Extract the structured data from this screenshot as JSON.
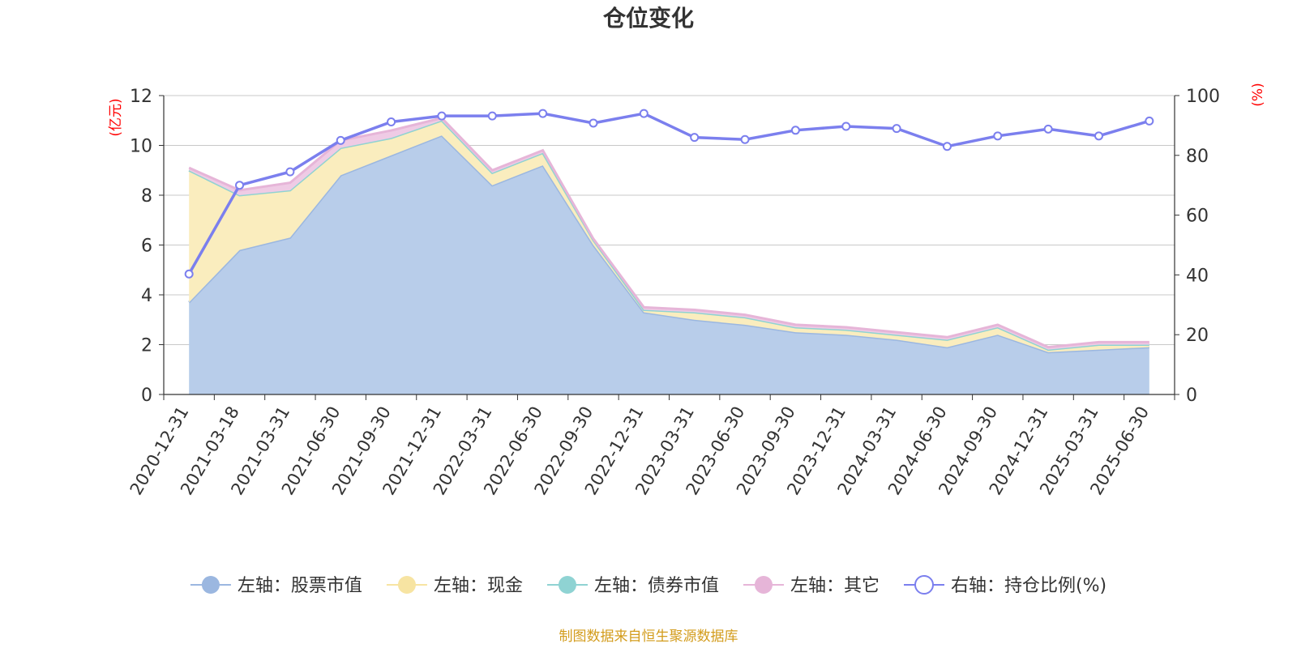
{
  "chart_data": {
    "type": "area",
    "title": "仓位变化",
    "left_unit": "(亿元)",
    "right_unit": "(%)",
    "source": "制图数据来自恒生聚源数据库",
    "x": [
      "2020-12-31",
      "2021-03-18",
      "2021-03-31",
      "2021-06-30",
      "2021-09-30",
      "2021-12-31",
      "2022-03-31",
      "2022-06-30",
      "2022-09-30",
      "2022-12-31",
      "2023-03-31",
      "2023-06-30",
      "2023-09-30",
      "2023-12-31",
      "2024-03-31",
      "2024-06-30",
      "2024-09-30",
      "2024-12-31",
      "2025-03-31",
      "2025-06-30"
    ],
    "y_left": {
      "min": 0,
      "max": 12,
      "ticks": [
        "0",
        "2",
        "4",
        "6",
        "8",
        "10",
        "12"
      ]
    },
    "y_right": {
      "min": 0,
      "max": 100,
      "ticks": [
        "0",
        "20",
        "40",
        "60",
        "80",
        "100"
      ]
    },
    "series": [
      {
        "name": "左轴：股票市值",
        "axis": "left",
        "stack": true,
        "color": "#9bb7e0",
        "fill": "#b8cdea",
        "values": [
          3.7,
          5.8,
          6.3,
          8.8,
          9.6,
          10.4,
          8.4,
          9.2,
          6.0,
          3.3,
          3.0,
          2.8,
          2.5,
          2.4,
          2.2,
          1.9,
          2.4,
          1.7,
          1.8,
          1.9
        ]
      },
      {
        "name": "左轴：现金",
        "axis": "left",
        "stack": true,
        "color": "#f7e4a2",
        "fill": "#faedbe",
        "values": [
          5.3,
          2.2,
          1.9,
          1.1,
          0.7,
          0.6,
          0.5,
          0.5,
          0.2,
          0.1,
          0.3,
          0.3,
          0.2,
          0.2,
          0.2,
          0.3,
          0.3,
          0.1,
          0.2,
          0.1
        ]
      },
      {
        "name": "左轴：债券市值",
        "axis": "left",
        "stack": true,
        "color": "#8fd3d3",
        "fill": "#b5e3e3",
        "values": [
          0,
          0,
          0,
          0,
          0,
          0,
          0,
          0,
          0,
          0,
          0,
          0,
          0,
          0,
          0,
          0,
          0,
          0,
          0,
          0
        ]
      },
      {
        "name": "左轴：其它",
        "axis": "left",
        "stack": true,
        "color": "#e6b5d8",
        "fill": "#efcbe5",
        "values": [
          0.1,
          0.2,
          0.3,
          0.3,
          0.3,
          0.1,
          0.1,
          0.1,
          0.05,
          0.1,
          0.1,
          0.1,
          0.1,
          0.1,
          0.1,
          0.1,
          0.1,
          0.1,
          0.1,
          0.1
        ]
      },
      {
        "name": "右轴：持仓比例(%)",
        "axis": "right",
        "stack": false,
        "color": "#7b7fee",
        "fill": "none",
        "values": [
          40.3,
          70.0,
          74.5,
          85.0,
          91.2,
          93.2,
          93.2,
          94.0,
          90.8,
          94.0,
          86.0,
          85.3,
          88.4,
          89.7,
          89.0,
          83.0,
          86.5,
          88.8,
          86.5,
          91.5
        ]
      }
    ]
  },
  "colors": {
    "unit_text": "#ff0000",
    "source_text": "#d39c1c",
    "axis": "#333333",
    "grid": "#c8c8c8"
  }
}
